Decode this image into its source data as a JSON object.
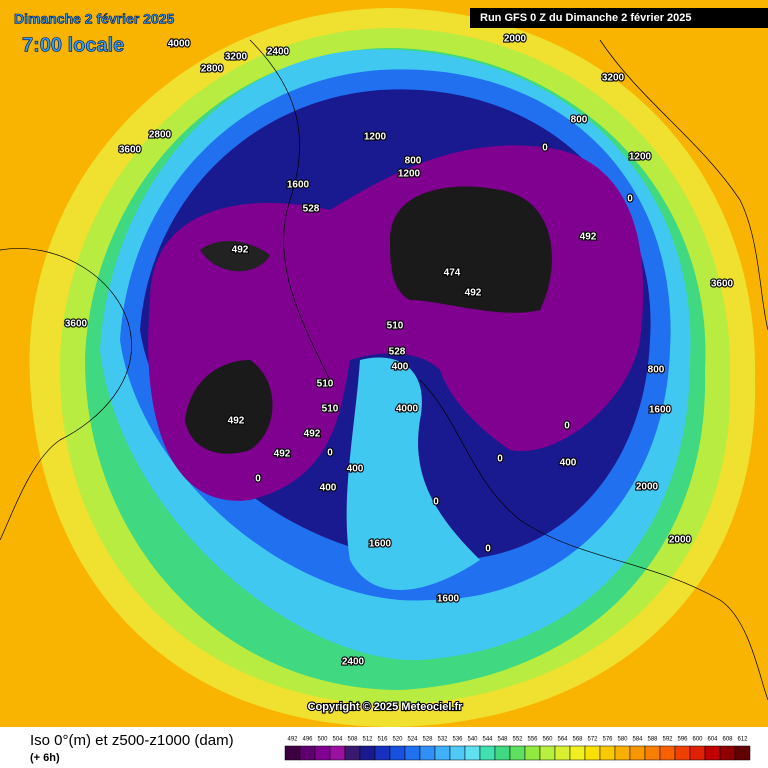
{
  "header": {
    "title": "Dimanche 2 février 2025",
    "time": "7:00 locale",
    "run": "Run GFS 0 Z du Dimanche 2 février 2025"
  },
  "map": {
    "copyright": "Copyright © 2025 Meteociel.fr",
    "labels": [
      "474",
      "492",
      "492",
      "492",
      "492",
      "492",
      "492",
      "510",
      "510",
      "510",
      "528",
      "528",
      "0",
      "0",
      "0",
      "0",
      "0",
      "0",
      "0",
      "0",
      "400",
      "400",
      "400",
      "400",
      "800",
      "800",
      "800",
      "1200",
      "1200",
      "1200",
      "1600",
      "1600",
      "1600",
      "1600",
      "2000",
      "2000",
      "2000",
      "2400",
      "2400",
      "2800",
      "2800",
      "3200",
      "3200",
      "3600",
      "3600",
      "3600",
      "4000",
      "4000"
    ]
  },
  "footer": {
    "title": "Iso 0°(m) et z500-z1000 (dam)",
    "step": "(+ 6h)"
  },
  "scale": {
    "values": [
      "492",
      "496",
      "500",
      "504",
      "508",
      "512",
      "516",
      "520",
      "524",
      "528",
      "532",
      "536",
      "540",
      "544",
      "548",
      "552",
      "556",
      "560",
      "564",
      "568",
      "572",
      "576",
      "580",
      "584",
      "588",
      "592",
      "596",
      "600",
      "604",
      "608",
      "612"
    ],
    "colors": [
      "#3c0040",
      "#600070",
      "#800090",
      "#9a10a0",
      "#3a1a70",
      "#1a1a90",
      "#1830c0",
      "#1850e0",
      "#2070f0",
      "#3090f8",
      "#40b0f8",
      "#50c8f8",
      "#60e0f0",
      "#40e0b0",
      "#40d880",
      "#60e060",
      "#90e840",
      "#b8f040",
      "#d8f030",
      "#f0f020",
      "#f8e000",
      "#f8c800",
      "#f8b000",
      "#f89800",
      "#f88000",
      "#f86000",
      "#f04000",
      "#e02000",
      "#c00000",
      "#900000",
      "#600000"
    ]
  }
}
